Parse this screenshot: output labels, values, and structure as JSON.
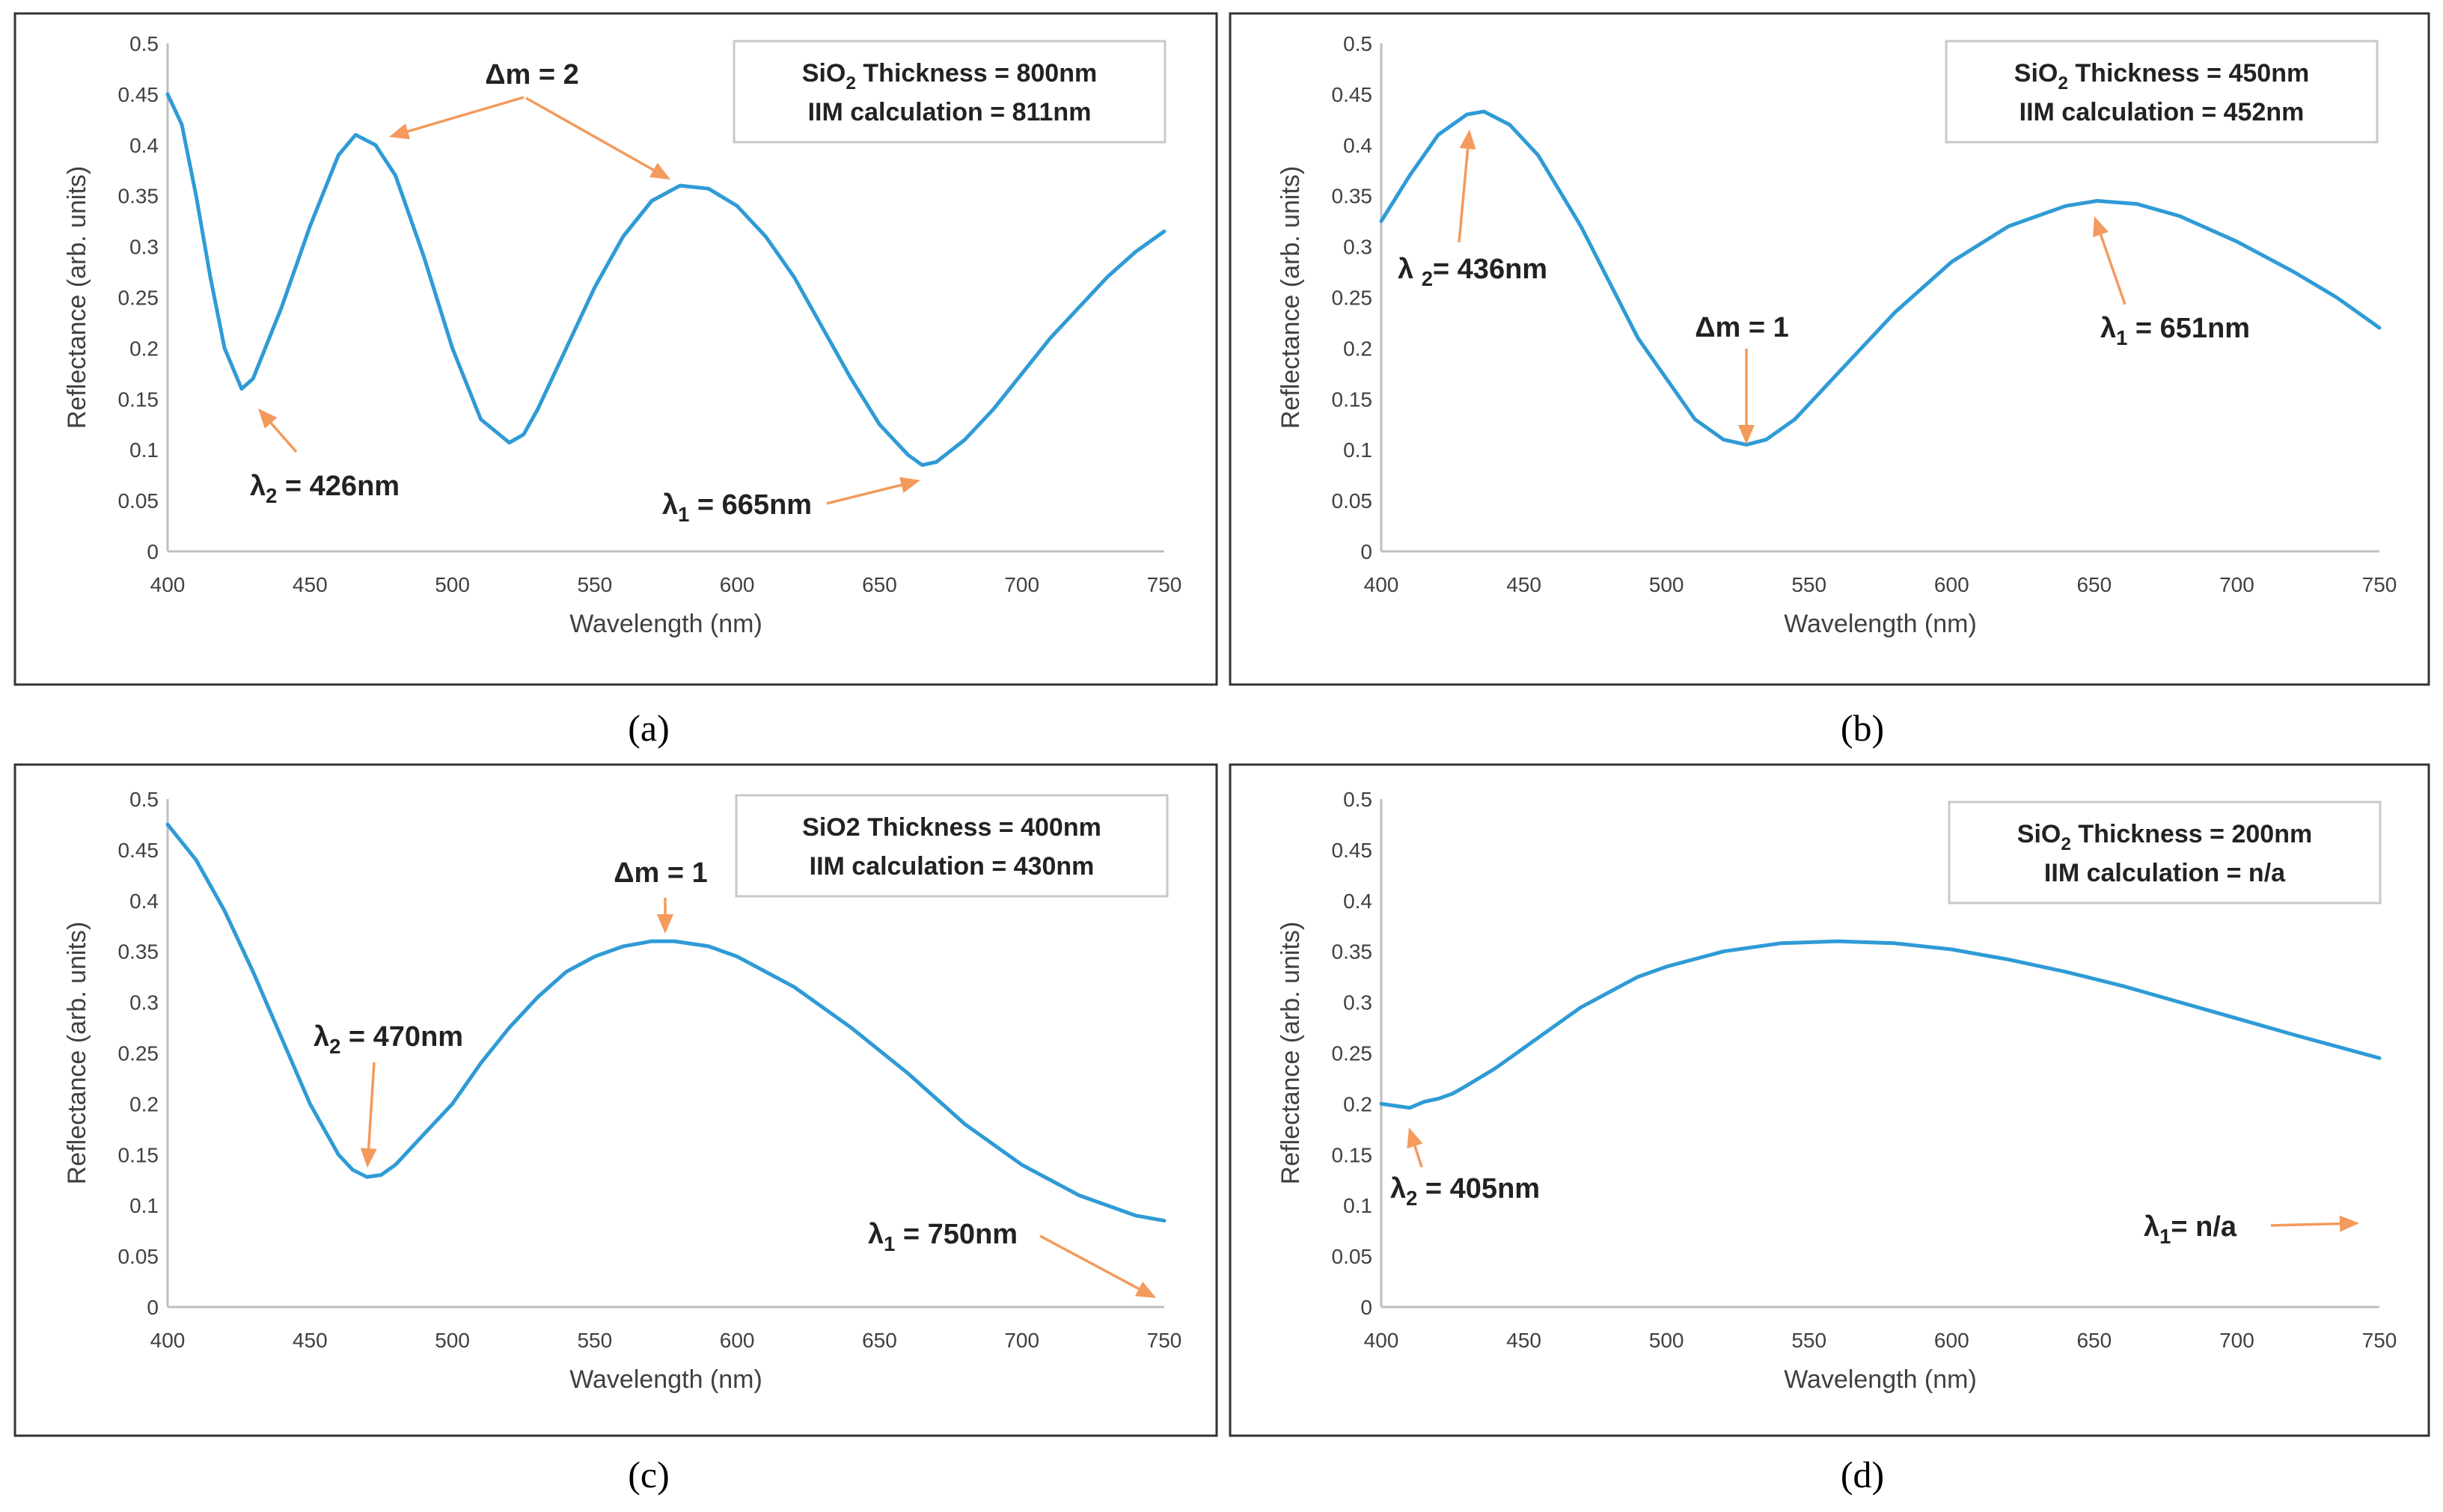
{
  "chart_data": [
    {
      "type": "line",
      "panel": "a",
      "caption": "(a)",
      "xlabel": "Wavelength (nm)",
      "ylabel": "Reflectance (arb. units)",
      "xlim": [
        400,
        750
      ],
      "ylim": [
        0,
        0.5
      ],
      "xticks": [
        "400",
        "450",
        "500",
        "550",
        "600",
        "650",
        "700",
        "750"
      ],
      "yticks": [
        "0",
        "0.05",
        "0.1",
        "0.15",
        "0.2",
        "0.25",
        "0.3",
        "0.35",
        "0.4",
        "0.45",
        "0.5"
      ],
      "info": {
        "line1_pre": "SiO",
        "line1_sub": "2",
        "line1_post": " Thickness = 800nm",
        "line2": "IIM calculation = 811nm"
      },
      "series": [
        {
          "name": "Reflectance",
          "x": [
            400,
            405,
            410,
            415,
            420,
            426,
            430,
            440,
            450,
            460,
            466,
            473,
            480,
            490,
            500,
            510,
            520,
            525,
            530,
            540,
            550,
            560,
            570,
            580,
            590,
            600,
            610,
            620,
            630,
            640,
            650,
            660,
            665,
            670,
            680,
            690,
            700,
            710,
            720,
            730,
            740,
            750
          ],
          "y": [
            0.45,
            0.42,
            0.35,
            0.27,
            0.2,
            0.16,
            0.17,
            0.24,
            0.32,
            0.39,
            0.41,
            0.4,
            0.37,
            0.29,
            0.2,
            0.13,
            0.107,
            0.115,
            0.14,
            0.2,
            0.26,
            0.31,
            0.345,
            0.36,
            0.357,
            0.34,
            0.31,
            0.27,
            0.22,
            0.17,
            0.125,
            0.095,
            0.085,
            0.088,
            0.11,
            0.14,
            0.175,
            0.21,
            0.24,
            0.27,
            0.295,
            0.315
          ]
        }
      ],
      "annotations": [
        {
          "label": "Δm = 2",
          "pre": "Δm = 2",
          "sub": "",
          "post": ""
        },
        {
          "label": "λ2 = 426nm",
          "pre": "λ",
          "sub": "2",
          "post": " = 426nm"
        },
        {
          "label": "λ1 = 665nm",
          "pre": "λ",
          "sub": "1",
          "post": " = 665nm"
        }
      ]
    },
    {
      "type": "line",
      "panel": "b",
      "caption": "(b)",
      "xlabel": "Wavelength (nm)",
      "ylabel": "Reflectance (arb. units)",
      "xlim": [
        400,
        750
      ],
      "ylim": [
        0,
        0.5
      ],
      "xticks": [
        "400",
        "450",
        "500",
        "550",
        "600",
        "650",
        "700",
        "750"
      ],
      "yticks": [
        "0",
        "0.05",
        "0.1",
        "0.15",
        "0.2",
        "0.25",
        "0.3",
        "0.35",
        "0.4",
        "0.45",
        "0.5"
      ],
      "info": {
        "line1_pre": "SiO",
        "line1_sub": "2",
        "line1_post": " Thickness = 450nm",
        "line2": "IIM calculation = 452nm"
      },
      "series": [
        {
          "name": "Reflectance",
          "x": [
            400,
            410,
            420,
            430,
            436,
            445,
            455,
            470,
            490,
            510,
            520,
            528,
            535,
            545,
            560,
            580,
            600,
            620,
            640,
            651,
            665,
            680,
            700,
            720,
            735,
            750
          ],
          "y": [
            0.325,
            0.37,
            0.41,
            0.43,
            0.433,
            0.42,
            0.39,
            0.32,
            0.21,
            0.13,
            0.11,
            0.105,
            0.11,
            0.13,
            0.175,
            0.235,
            0.285,
            0.32,
            0.34,
            0.345,
            0.342,
            0.33,
            0.305,
            0.275,
            0.25,
            0.22
          ]
        }
      ],
      "annotations": [
        {
          "label": "λ 2= 436nm",
          "pre": "λ ",
          "sub": "2",
          "post": "= 436nm"
        },
        {
          "label": "Δm = 1",
          "pre": "Δm = 1",
          "sub": "",
          "post": ""
        },
        {
          "label": "λ1 = 651nm",
          "pre": "λ",
          "sub": "1",
          "post": " = 651nm"
        }
      ]
    },
    {
      "type": "line",
      "panel": "c",
      "caption": "(c)",
      "xlabel": "Wavelength (nm)",
      "ylabel": "Reflectance (arb. units)",
      "xlim": [
        400,
        750
      ],
      "ylim": [
        0,
        0.5
      ],
      "xticks": [
        "400",
        "450",
        "500",
        "550",
        "600",
        "650",
        "700",
        "750"
      ],
      "yticks": [
        "0",
        "0.05",
        "0.1",
        "0.15",
        "0.2",
        "0.25",
        "0.3",
        "0.35",
        "0.4",
        "0.45",
        "0.5"
      ],
      "info": {
        "line1_pre": "SiO2 Thickness =  400nm",
        "line1_sub": "",
        "line1_post": "",
        "line2": "IIM calculation = 430nm"
      },
      "series": [
        {
          "name": "Reflectance",
          "x": [
            400,
            410,
            420,
            430,
            440,
            450,
            460,
            465,
            470,
            475,
            480,
            490,
            500,
            510,
            520,
            530,
            540,
            550,
            560,
            570,
            578,
            590,
            600,
            620,
            640,
            660,
            680,
            700,
            720,
            740,
            750
          ],
          "y": [
            0.475,
            0.44,
            0.39,
            0.33,
            0.265,
            0.2,
            0.15,
            0.135,
            0.128,
            0.13,
            0.14,
            0.17,
            0.2,
            0.24,
            0.275,
            0.305,
            0.33,
            0.345,
            0.355,
            0.36,
            0.36,
            0.355,
            0.345,
            0.315,
            0.275,
            0.23,
            0.18,
            0.14,
            0.11,
            0.09,
            0.085
          ]
        }
      ],
      "annotations": [
        {
          "label": "Δm = 1",
          "pre": "Δm = 1",
          "sub": "",
          "post": ""
        },
        {
          "label": "λ2 = 470nm",
          "pre": "λ",
          "sub": "2",
          "post": " = 470nm"
        },
        {
          "label": "λ1 = 750nm",
          "pre": "λ",
          "sub": "1",
          "post": " = 750nm"
        }
      ]
    },
    {
      "type": "line",
      "panel": "d",
      "caption": "(d)",
      "xlabel": "Wavelength (nm)",
      "ylabel": "Reflectance (arb. units)",
      "xlim": [
        400,
        750
      ],
      "ylim": [
        0,
        0.5
      ],
      "xticks": [
        "400",
        "450",
        "500",
        "550",
        "600",
        "650",
        "700",
        "750"
      ],
      "yticks": [
        "0",
        "0.05",
        "0.1",
        "0.15",
        "0.2",
        "0.25",
        "0.3",
        "0.35",
        "0.4",
        "0.45",
        "0.5"
      ],
      "info": {
        "line1_pre": "SiO",
        "line1_sub": "2",
        "line1_post": " Thickness =  200nm",
        "line2": "IIM calculation = n/a"
      },
      "series": [
        {
          "name": "Reflectance",
          "x": [
            400,
            405,
            410,
            415,
            420,
            425,
            430,
            440,
            450,
            460,
            470,
            480,
            490,
            500,
            520,
            540,
            560,
            580,
            600,
            620,
            640,
            660,
            680,
            700,
            720,
            750
          ],
          "y": [
            0.2,
            0.198,
            0.196,
            0.202,
            0.205,
            0.21,
            0.218,
            0.235,
            0.255,
            0.275,
            0.295,
            0.31,
            0.325,
            0.335,
            0.35,
            0.358,
            0.36,
            0.358,
            0.352,
            0.342,
            0.33,
            0.316,
            0.3,
            0.284,
            0.268,
            0.245
          ]
        }
      ],
      "annotations": [
        {
          "label": "λ2 = 405nm",
          "pre": "λ",
          "sub": "2",
          "post": " = 405nm"
        },
        {
          "label": "λ1= n/a",
          "pre": "λ",
          "sub": "1",
          "post": "= n/a"
        }
      ]
    }
  ]
}
